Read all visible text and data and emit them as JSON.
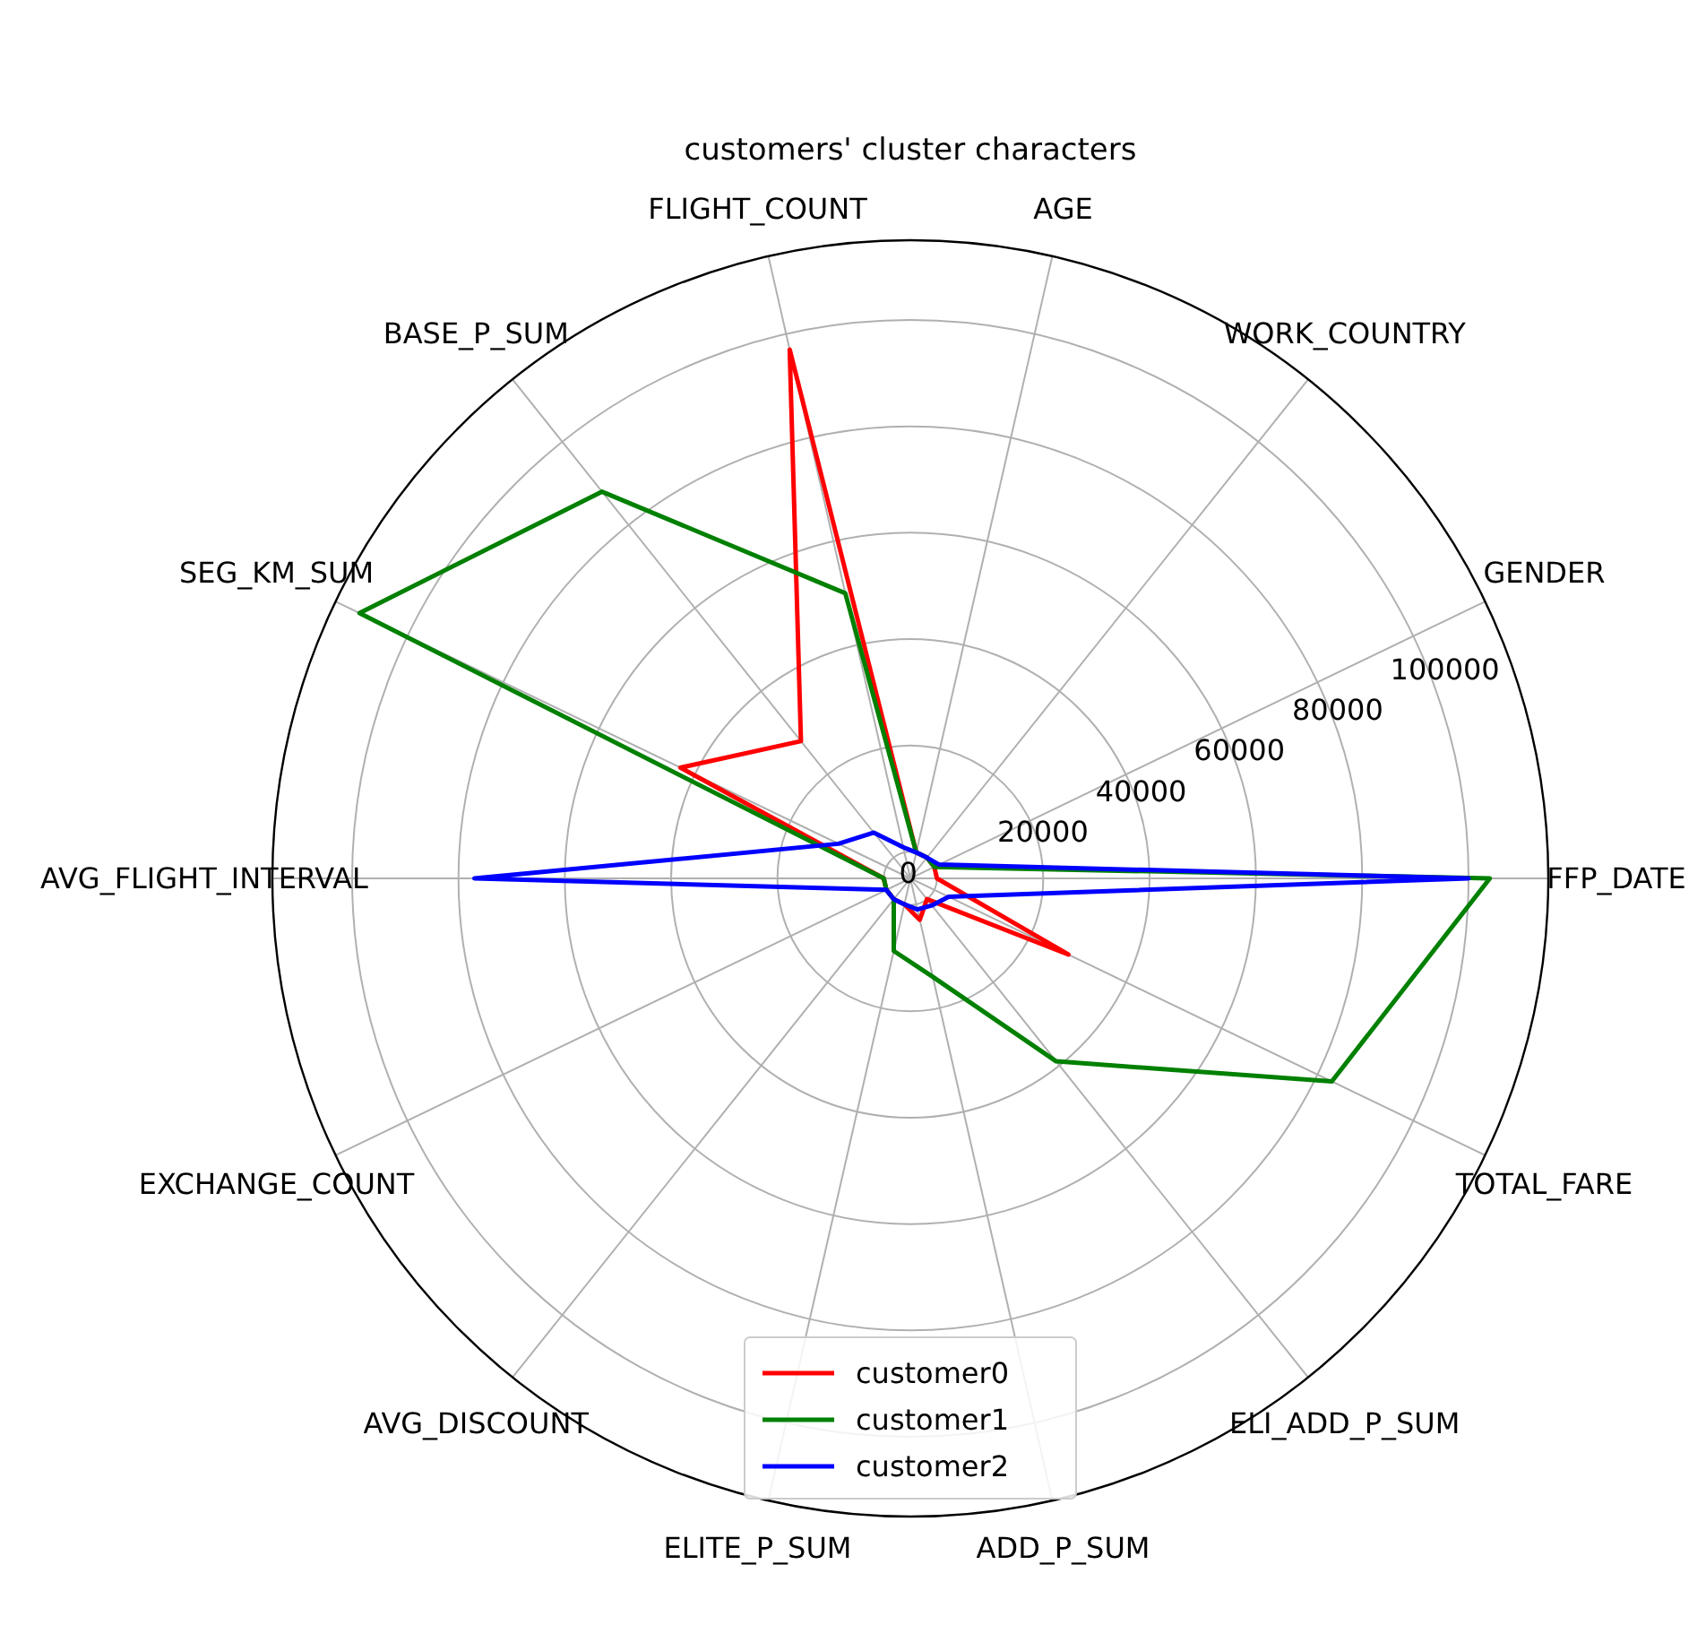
{
  "chart_data": {
    "type": "radar",
    "title": "customers' cluster characters",
    "categories": [
      "AGE",
      "WORK_COUNTRY",
      "GENDER",
      "FFP_DATE",
      "TOTAL_FARE",
      "ELI_ADD_P_SUM",
      "ADD_P_SUM",
      "ELITE_P_SUM",
      "AVG_DISCOUNT",
      "EXCHANGE_COUNT",
      "AVG_FLIGHT_INTERVAL",
      "SEG_KM_SUM",
      "BASE_P_SUM",
      "FLIGHT_COUNT"
    ],
    "series": [
      {
        "name": "customer0",
        "color": "#ff0000",
        "values": [
          0,
          0,
          0,
          0,
          28000,
          0,
          3000,
          0,
          0,
          0,
          0,
          43000,
          28000,
          97000
        ]
      },
      {
        "name": "customer1",
        "color": "#008000",
        "values": [
          0,
          0,
          0,
          104000,
          83000,
          39000,
          14000,
          9000,
          0,
          0,
          0,
          110000,
          88000,
          50000
        ]
      },
      {
        "name": "customer2",
        "color": "#0000ff",
        "values": [
          0,
          0,
          1000,
          100000,
          3000,
          1500,
          1000,
          0,
          0,
          0,
          77000,
          10000,
          6000,
          1000
        ]
      }
    ],
    "ylim": [
      -5000,
      115000
    ],
    "yticks": [
      0,
      20000,
      40000,
      60000,
      80000,
      100000
    ],
    "grid": true,
    "legend": "bottom"
  }
}
